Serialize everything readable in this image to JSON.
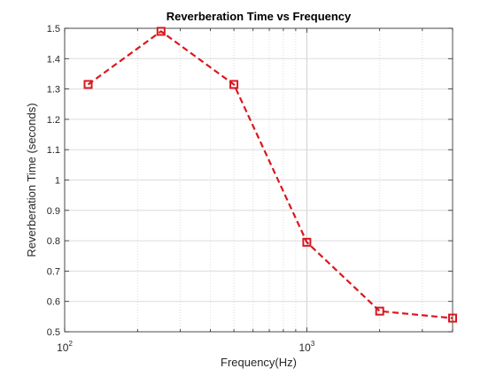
{
  "chart_data": {
    "type": "line",
    "title": "Reverberation Time vs Frequency",
    "xlabel": "Frequency(Hz)",
    "ylabel": "Reverberation Time (seconds)",
    "x_scale": "log",
    "xlim": [
      100,
      4000
    ],
    "ylim": [
      0.5,
      1.5
    ],
    "x_ticks": [
      {
        "value": 100,
        "base": "10",
        "exp": "2"
      },
      {
        "value": 1000,
        "base": "10",
        "exp": "3"
      }
    ],
    "y_ticks": [
      "0.5",
      "0.6",
      "0.7",
      "0.8",
      "0.9",
      "1",
      "1.1",
      "1.2",
      "1.3",
      "1.4",
      "1.5"
    ],
    "grid": true,
    "line_style": "dashed",
    "marker": "square",
    "color": "#d9181f",
    "x": [
      125,
      250,
      500,
      1000,
      2000,
      4000
    ],
    "y": [
      1.315,
      1.49,
      1.315,
      0.795,
      0.568,
      0.545
    ]
  }
}
